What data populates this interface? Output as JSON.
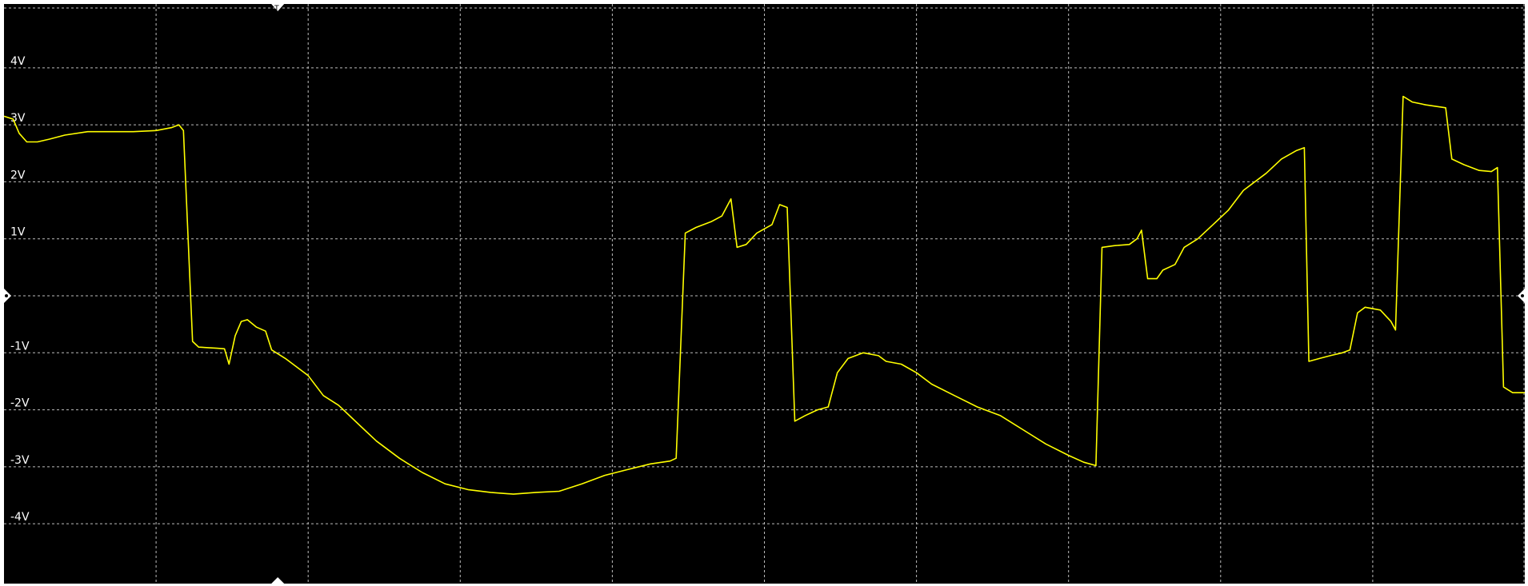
{
  "chart_data": {
    "type": "line",
    "title": "",
    "xlabel": "",
    "ylabel": "",
    "ylim": [
      -5.05,
      5.05
    ],
    "xlim": [
      0,
      10
    ],
    "grid": true,
    "colors": {
      "background": "#000000",
      "grid": "#bdbdbd",
      "trace": "#ffff00",
      "markers": "#ffffff"
    },
    "y_ticks": [
      {
        "value": 4,
        "label": "4V"
      },
      {
        "value": 3,
        "label": "3V"
      },
      {
        "value": 2,
        "label": "2V"
      },
      {
        "value": 1,
        "label": "1V"
      },
      {
        "value": -1,
        "label": "-1V"
      },
      {
        "value": -2,
        "label": "-2V"
      },
      {
        "value": -3,
        "label": "-3V"
      },
      {
        "value": -4,
        "label": "-4V"
      }
    ],
    "x_divisions": 10,
    "trigger_marker": {
      "icon": "trigger-t-icon",
      "label": "T",
      "x": 1.8
    },
    "ground_marker": {
      "icon": "ground-diamond-icon",
      "y": 0
    },
    "series": [
      {
        "values": [
          [
            0.0,
            3.15
          ],
          [
            0.06,
            3.1
          ],
          [
            0.1,
            2.85
          ],
          [
            0.15,
            2.7
          ],
          [
            0.22,
            2.7
          ],
          [
            0.3,
            2.75
          ],
          [
            0.4,
            2.82
          ],
          [
            0.55,
            2.88
          ],
          [
            0.7,
            2.88
          ],
          [
            0.85,
            2.88
          ],
          [
            1.0,
            2.9
          ],
          [
            1.1,
            2.95
          ],
          [
            1.15,
            3.0
          ],
          [
            1.18,
            2.9
          ],
          [
            1.24,
            -0.8
          ],
          [
            1.28,
            -0.9
          ],
          [
            1.4,
            -0.92
          ],
          [
            1.45,
            -0.93
          ],
          [
            1.48,
            -1.2
          ],
          [
            1.52,
            -0.7
          ],
          [
            1.56,
            -0.45
          ],
          [
            1.6,
            -0.42
          ],
          [
            1.66,
            -0.55
          ],
          [
            1.72,
            -0.62
          ],
          [
            1.76,
            -0.95
          ],
          [
            1.85,
            -1.1
          ],
          [
            2.0,
            -1.4
          ],
          [
            2.1,
            -1.75
          ],
          [
            2.2,
            -1.92
          ],
          [
            2.35,
            -2.3
          ],
          [
            2.45,
            -2.55
          ],
          [
            2.6,
            -2.85
          ],
          [
            2.75,
            -3.1
          ],
          [
            2.9,
            -3.3
          ],
          [
            3.05,
            -3.4
          ],
          [
            3.2,
            -3.45
          ],
          [
            3.35,
            -3.48
          ],
          [
            3.5,
            -3.45
          ],
          [
            3.65,
            -3.43
          ],
          [
            3.8,
            -3.3
          ],
          [
            3.95,
            -3.15
          ],
          [
            4.1,
            -3.05
          ],
          [
            4.25,
            -2.95
          ],
          [
            4.38,
            -2.9
          ],
          [
            4.42,
            -2.85
          ],
          [
            4.48,
            1.1
          ],
          [
            4.55,
            1.2
          ],
          [
            4.65,
            1.3
          ],
          [
            4.72,
            1.4
          ],
          [
            4.78,
            1.7
          ],
          [
            4.82,
            0.85
          ],
          [
            4.88,
            0.9
          ],
          [
            4.95,
            1.1
          ],
          [
            5.05,
            1.25
          ],
          [
            5.1,
            1.6
          ],
          [
            5.15,
            1.55
          ],
          [
            5.2,
            -2.2
          ],
          [
            5.27,
            -2.1
          ],
          [
            5.35,
            -2.0
          ],
          [
            5.42,
            -1.95
          ],
          [
            5.48,
            -1.35
          ],
          [
            5.55,
            -1.1
          ],
          [
            5.65,
            -1.0
          ],
          [
            5.75,
            -1.05
          ],
          [
            5.8,
            -1.15
          ],
          [
            5.9,
            -1.2
          ],
          [
            6.0,
            -1.35
          ],
          [
            6.1,
            -1.55
          ],
          [
            6.25,
            -1.75
          ],
          [
            6.4,
            -1.95
          ],
          [
            6.55,
            -2.1
          ],
          [
            6.7,
            -2.35
          ],
          [
            6.85,
            -2.6
          ],
          [
            7.0,
            -2.8
          ],
          [
            7.1,
            -2.92
          ],
          [
            7.18,
            -2.98
          ],
          [
            7.22,
            0.85
          ],
          [
            7.3,
            0.88
          ],
          [
            7.4,
            0.9
          ],
          [
            7.45,
            1.0
          ],
          [
            7.48,
            1.15
          ],
          [
            7.52,
            0.3
          ],
          [
            7.58,
            0.3
          ],
          [
            7.62,
            0.45
          ],
          [
            7.7,
            0.55
          ],
          [
            7.76,
            0.85
          ],
          [
            7.85,
            1.0
          ],
          [
            7.95,
            1.25
          ],
          [
            8.05,
            1.5
          ],
          [
            8.15,
            1.85
          ],
          [
            8.3,
            2.15
          ],
          [
            8.4,
            2.4
          ],
          [
            8.5,
            2.55
          ],
          [
            8.55,
            2.6
          ],
          [
            8.58,
            -1.15
          ],
          [
            8.65,
            -1.1
          ],
          [
            8.72,
            -1.05
          ],
          [
            8.8,
            -1.0
          ],
          [
            8.85,
            -0.95
          ],
          [
            8.9,
            -0.3
          ],
          [
            8.95,
            -0.2
          ],
          [
            9.05,
            -0.25
          ],
          [
            9.12,
            -0.45
          ],
          [
            9.15,
            -0.6
          ],
          [
            9.2,
            3.5
          ],
          [
            9.26,
            3.4
          ],
          [
            9.35,
            3.35
          ],
          [
            9.48,
            3.3
          ],
          [
            9.52,
            2.4
          ],
          [
            9.6,
            2.3
          ],
          [
            9.7,
            2.2
          ],
          [
            9.78,
            2.18
          ],
          [
            9.82,
            2.25
          ],
          [
            9.86,
            -1.6
          ],
          [
            9.92,
            -1.7
          ],
          [
            10.0,
            -1.7
          ]
        ]
      }
    ]
  }
}
